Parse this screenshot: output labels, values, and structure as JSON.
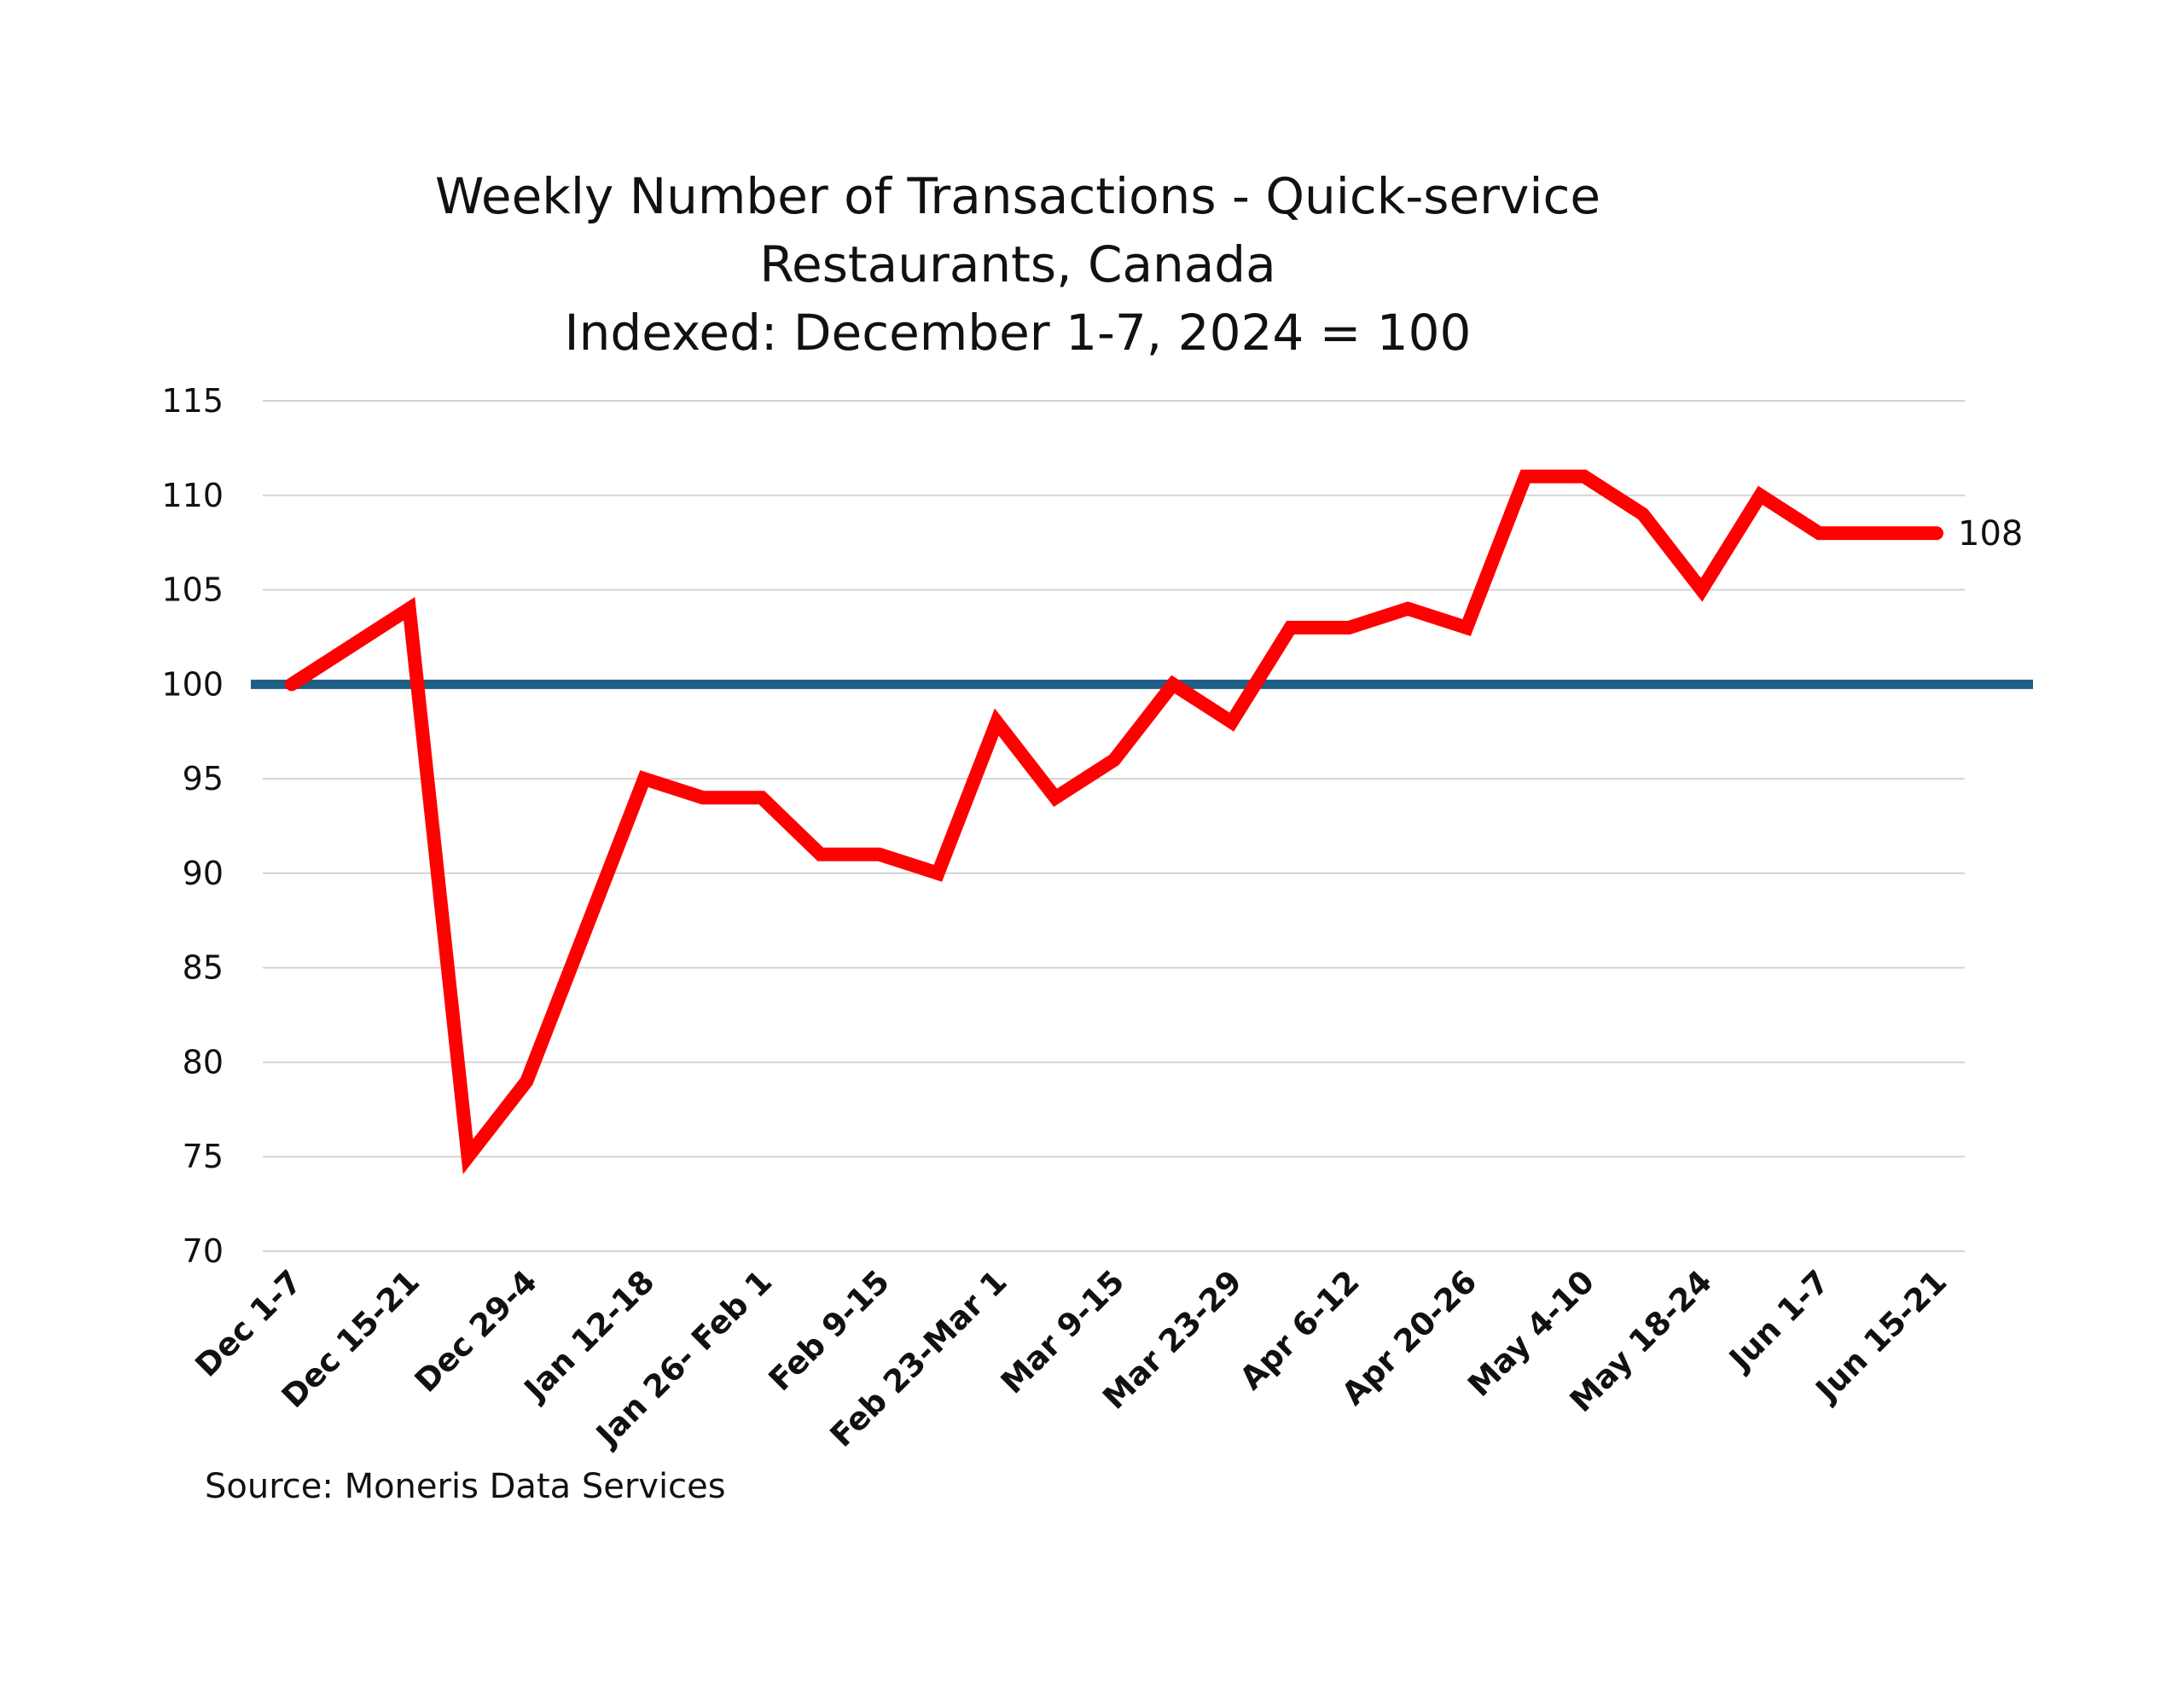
{
  "chart_data": {
    "type": "line",
    "title_lines": [
      "Weekly Number of Transactions - Quick-service",
      "Restaurants, Canada",
      "Indexed: December 1-7, 2024 = 100"
    ],
    "xlabel": "",
    "ylabel": "",
    "ylim": [
      70,
      115
    ],
    "yticks": [
      "115",
      "110",
      "105",
      "100",
      "95",
      "90",
      "85",
      "80",
      "75",
      "70"
    ],
    "grid": true,
    "x_labels_shown": [
      "Dec 1-7",
      "Dec 15-21",
      "Dec 29-4",
      "Jan 12-18",
      "Jan 26- Feb 1",
      "Feb 9-15",
      "Feb 23-Mar 1",
      "Mar 9-15",
      "Mar 23-29",
      "Apr 6-12",
      "Apr 20-26",
      "May 4-10",
      "May 18-24",
      "Jun 1-7",
      "Jun 15-21"
    ],
    "series": [
      {
        "color": "#ff0000",
        "values": [
          100,
          102,
          104,
          75,
          79,
          87,
          95,
          94,
          94,
          91,
          91,
          90,
          98,
          94,
          96,
          100,
          98,
          103,
          103,
          104,
          103,
          111,
          111,
          109,
          105,
          110,
          108,
          108,
          108
        ]
      }
    ],
    "reference_line": {
      "value": 100,
      "color": "#1f5f86"
    },
    "end_label": "108",
    "source": "Source: Moneris Data Services"
  }
}
